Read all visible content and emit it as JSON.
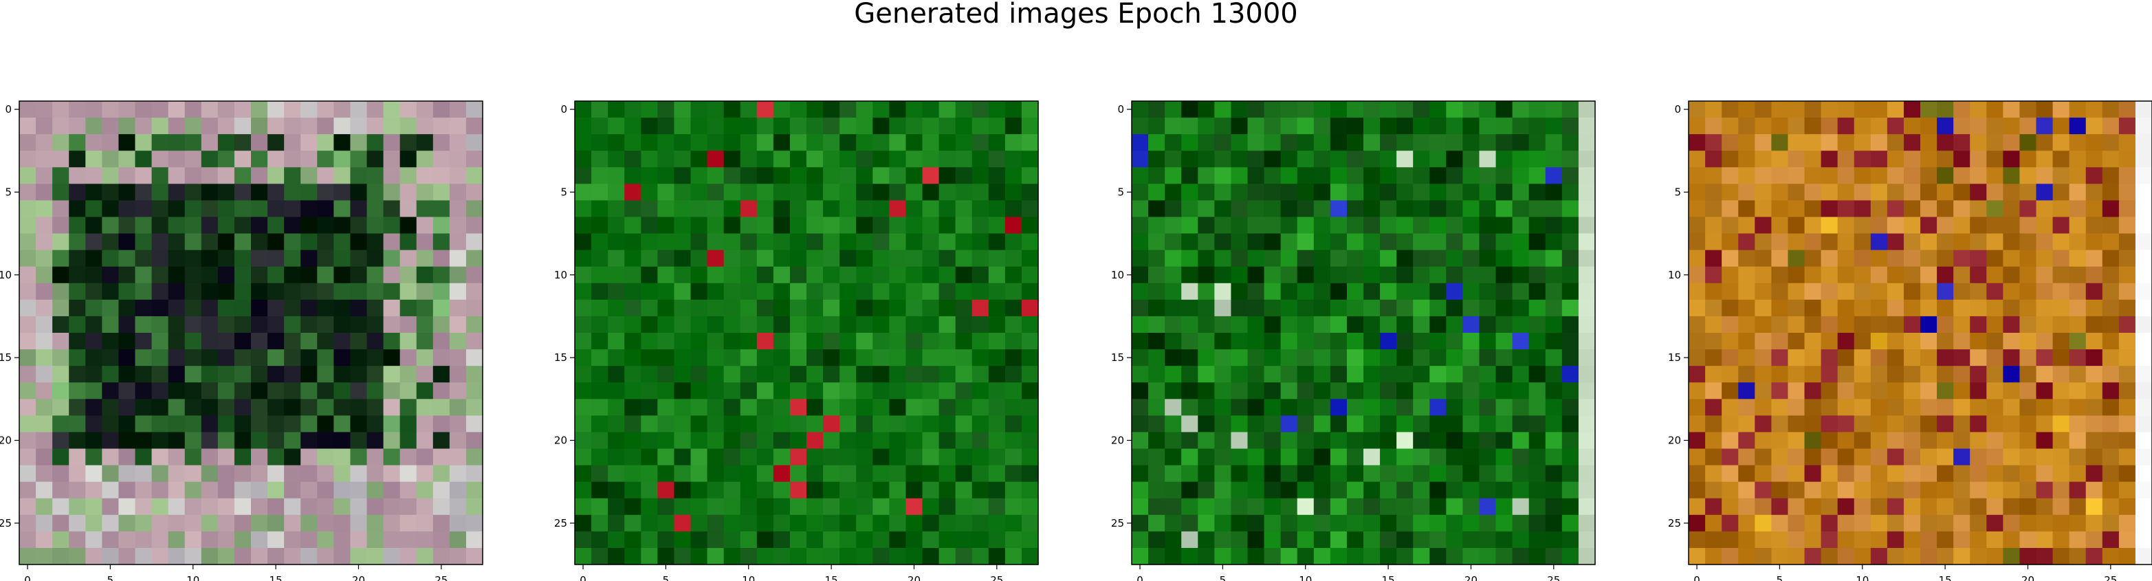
{
  "title": "Generated images Epoch 13000",
  "chart_data": [
    {
      "type": "heatmap",
      "description_kind": "image",
      "grid_size": [
        28,
        28
      ],
      "x_ticks": [
        "0",
        "5",
        "10",
        "15",
        "20",
        "25"
      ],
      "y_ticks": [
        "0",
        "5",
        "10",
        "15",
        "20",
        "25"
      ],
      "palette": [
        "#b89aa6",
        "#8fb27f",
        "#2c6a2e",
        "#0d2a12",
        "#1d1b2a",
        "#c6c4c6",
        "#6fae6a"
      ]
    },
    {
      "type": "heatmap",
      "description_kind": "image",
      "grid_size": [
        28,
        28
      ],
      "x_ticks": [
        "0",
        "5",
        "10",
        "15",
        "20",
        "25"
      ],
      "y_ticks": [
        "0",
        "5",
        "10",
        "15",
        "20",
        "25"
      ],
      "palette": [
        "#0b6e12",
        "#127d16",
        "#074a0e",
        "#1d8a1f",
        "#005c0a",
        "#c21a2a"
      ]
    },
    {
      "type": "heatmap",
      "description_kind": "image",
      "grid_size": [
        28,
        28
      ],
      "x_ticks": [
        "0",
        "5",
        "10",
        "15",
        "20",
        "25"
      ],
      "y_ticks": [
        "0",
        "5",
        "10",
        "15",
        "20",
        "25"
      ],
      "palette": [
        "#0b5e0f",
        "#137c17",
        "#063f0b",
        "#1f9a1f",
        "#2130c8",
        "#c6dcc0"
      ]
    },
    {
      "type": "heatmap",
      "description_kind": "image",
      "grid_size": [
        28,
        28
      ],
      "x_ticks": [
        "0",
        "5",
        "10",
        "15",
        "20",
        "25"
      ],
      "y_ticks": [
        "0",
        "5",
        "10",
        "15",
        "20",
        "25"
      ],
      "palette": [
        "#c7861a",
        "#a86b12",
        "#d08a3c",
        "#8a1c28",
        "#6b6a10",
        "#2018b8",
        "#e6b020"
      ]
    }
  ]
}
